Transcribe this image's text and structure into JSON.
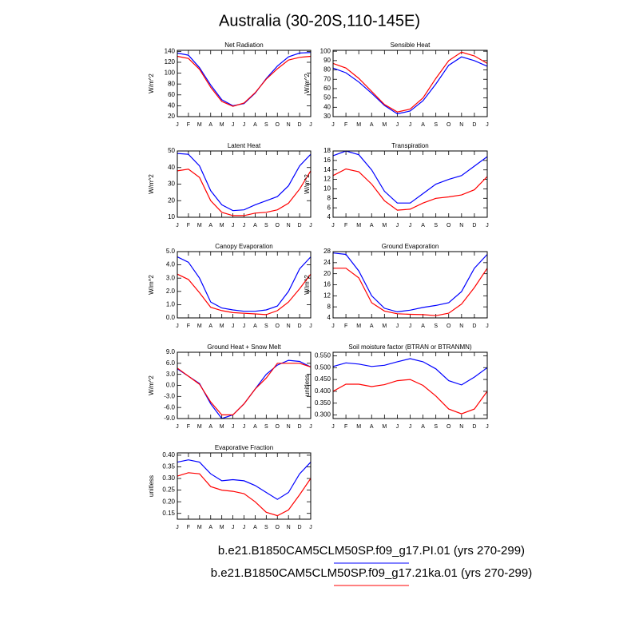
{
  "title": "Australia (30-20S,110-145E)",
  "chart_data": [
    {
      "type": "line",
      "title": "Net Radiation",
      "ylabel": "W/m^2",
      "categories": [
        "J",
        "F",
        "M",
        "A",
        "M",
        "J",
        "J",
        "A",
        "S",
        "O",
        "N",
        "D",
        "J"
      ],
      "ylim": [
        20,
        142
      ],
      "yticks": [
        20,
        40,
        60,
        80,
        100,
        120,
        140
      ],
      "series": [
        {
          "name": "b.e21.B1850CAM5CLM50SP.f09_g17.PI.01 (yrs 270-299)",
          "color": "#0000ff",
          "values": [
            137,
            133,
            110,
            78,
            51,
            40,
            44,
            63,
            90,
            113,
            130,
            137,
            138
          ]
        },
        {
          "name": "b.e21.B1850CAM5CLM50SP.f09_g17.21ka.01 (yrs 270-299)",
          "color": "#ff0000",
          "values": [
            131,
            127,
            107,
            74,
            48,
            39,
            45,
            64,
            89,
            108,
            124,
            129,
            131
          ]
        }
      ]
    },
    {
      "type": "line",
      "title": "Sensible Heat",
      "ylabel": "W/m^2",
      "categories": [
        "J",
        "F",
        "M",
        "A",
        "M",
        "J",
        "J",
        "A",
        "S",
        "O",
        "N",
        "D",
        "J"
      ],
      "ylim": [
        30,
        101
      ],
      "yticks": [
        30,
        40,
        50,
        60,
        70,
        80,
        90,
        100
      ],
      "series": [
        {
          "color": "#0000ff",
          "values": [
            82,
            77,
            67,
            55,
            42,
            33,
            36,
            47,
            65,
            85,
            94,
            90,
            84
          ]
        },
        {
          "color": "#ff0000",
          "values": [
            87,
            82,
            71,
            57,
            43,
            35,
            38,
            50,
            71,
            90,
            99,
            95,
            87
          ]
        }
      ]
    },
    {
      "type": "line",
      "title": "Latent Heat",
      "ylabel": "W/m^2",
      "categories": [
        "J",
        "F",
        "M",
        "A",
        "M",
        "J",
        "J",
        "A",
        "S",
        "O",
        "N",
        "D",
        "J"
      ],
      "ylim": [
        10,
        50
      ],
      "yticks": [
        10,
        20,
        30,
        40,
        50
      ],
      "series": [
        {
          "color": "#0000ff",
          "values": [
            48.5,
            48,
            41,
            26,
            17.5,
            14,
            14.5,
            17.5,
            20,
            22.5,
            29,
            41,
            48
          ]
        },
        {
          "color": "#ff0000",
          "values": [
            38,
            39,
            34,
            20,
            13,
            11,
            11,
            12.5,
            13,
            14.5,
            18.5,
            27,
            38
          ]
        }
      ]
    },
    {
      "type": "line",
      "title": "Transpiration",
      "ylabel": "W/m^2",
      "categories": [
        "J",
        "F",
        "M",
        "A",
        "M",
        "J",
        "J",
        "A",
        "S",
        "O",
        "N",
        "D",
        "J"
      ],
      "ylim": [
        4,
        18
      ],
      "yticks": [
        4,
        6,
        8,
        10,
        12,
        14,
        16,
        18
      ],
      "series": [
        {
          "color": "#0000ff",
          "values": [
            17,
            18,
            17.2,
            14,
            9.5,
            7,
            7,
            9,
            11,
            12,
            12.8,
            14.8,
            16.8
          ]
        },
        {
          "color": "#ff0000",
          "values": [
            12.8,
            14.2,
            13.6,
            11,
            7.5,
            5.5,
            5.7,
            7,
            8,
            8.3,
            8.7,
            9.8,
            12.6
          ]
        }
      ]
    },
    {
      "type": "line",
      "title": "Canopy Evaporation",
      "ylabel": "W/m^2",
      "categories": [
        "J",
        "F",
        "M",
        "A",
        "M",
        "J",
        "J",
        "A",
        "S",
        "O",
        "N",
        "D",
        "J"
      ],
      "ylim": [
        0,
        5
      ],
      "yticks": [
        {
          "value": 0,
          "label": "0.0"
        },
        {
          "value": 1,
          "label": "1.0"
        },
        {
          "value": 2,
          "label": "2.0"
        },
        {
          "value": 3,
          "label": "3.0"
        },
        {
          "value": 4,
          "label": "4.0"
        },
        {
          "value": 5,
          "label": "5.0"
        }
      ],
      "series": [
        {
          "color": "#0000ff",
          "values": [
            4.6,
            4.2,
            3.0,
            1.2,
            0.75,
            0.6,
            0.5,
            0.5,
            0.6,
            0.9,
            2.0,
            3.7,
            4.6
          ]
        },
        {
          "color": "#ff0000",
          "values": [
            3.3,
            2.9,
            1.9,
            0.8,
            0.55,
            0.4,
            0.35,
            0.3,
            0.25,
            0.55,
            1.2,
            2.2,
            3.3
          ]
        }
      ]
    },
    {
      "type": "line",
      "title": "Ground Evaporation",
      "ylabel": "W/m^2",
      "categories": [
        "J",
        "F",
        "M",
        "A",
        "M",
        "J",
        "J",
        "A",
        "S",
        "O",
        "N",
        "D",
        "J"
      ],
      "ylim": [
        4,
        28
      ],
      "yticks": [
        4,
        8,
        12,
        16,
        20,
        24,
        28
      ],
      "series": [
        {
          "color": "#0000ff",
          "values": [
            27.5,
            27,
            21,
            12,
            7.5,
            6.2,
            6.8,
            7.8,
            8.5,
            9.5,
            13.5,
            22,
            27
          ]
        },
        {
          "color": "#ff0000",
          "values": [
            22,
            22,
            18.5,
            9.5,
            6.5,
            5.5,
            5.3,
            5.2,
            4.8,
            5.7,
            9,
            15,
            22
          ]
        }
      ]
    },
    {
      "type": "line",
      "title": "Ground Heat + Snow Melt",
      "ylabel": "W/m^2",
      "categories": [
        "J",
        "F",
        "M",
        "A",
        "M",
        "J",
        "J",
        "A",
        "S",
        "O",
        "N",
        "D",
        "J"
      ],
      "ylim": [
        -9,
        9
      ],
      "yticks": [
        {
          "value": -9,
          "label": "-9.0"
        },
        {
          "value": -6,
          "label": "-6.0"
        },
        {
          "value": -3,
          "label": "-3.0"
        },
        {
          "value": 0,
          "label": "0.0"
        },
        {
          "value": 3,
          "label": "3.0"
        },
        {
          "value": 6,
          "label": "6.0"
        },
        {
          "value": 9,
          "label": "9.0"
        }
      ],
      "series": [
        {
          "color": "#0000ff",
          "values": [
            4.5,
            2.5,
            0.5,
            -5,
            -9,
            -8,
            -5,
            -1,
            3,
            5.5,
            6.8,
            6.5,
            5
          ]
        },
        {
          "color": "#ff0000",
          "values": [
            4.7,
            2.5,
            0.3,
            -4.5,
            -8,
            -8,
            -5,
            -1,
            2,
            6,
            6,
            6,
            5
          ]
        }
      ]
    },
    {
      "type": "line",
      "title": "Soil moisture factor (BTRAN or BTRANMN)",
      "ylabel": "unitless",
      "categories": [
        "J",
        "F",
        "M",
        "A",
        "M",
        "J",
        "J",
        "A",
        "S",
        "O",
        "N",
        "D",
        "J"
      ],
      "ylim": [
        0.285,
        0.565
      ],
      "yticks": [
        {
          "value": 0.3,
          "label": "0.300"
        },
        {
          "value": 0.35,
          "label": "0.350"
        },
        {
          "value": 0.4,
          "label": "0.400"
        },
        {
          "value": 0.45,
          "label": "0.450"
        },
        {
          "value": 0.5,
          "label": "0.500"
        },
        {
          "value": 0.55,
          "label": "0.550"
        }
      ],
      "series": [
        {
          "color": "#0000ff",
          "values": [
            0.505,
            0.52,
            0.515,
            0.505,
            0.51,
            0.525,
            0.538,
            0.525,
            0.495,
            0.445,
            0.427,
            0.46,
            0.5
          ]
        },
        {
          "color": "#ff0000",
          "values": [
            0.4,
            0.43,
            0.43,
            0.42,
            0.428,
            0.445,
            0.45,
            0.425,
            0.38,
            0.325,
            0.305,
            0.325,
            0.4
          ]
        }
      ]
    },
    {
      "type": "line",
      "title": "Evaporative Fraction",
      "ylabel": "unitless",
      "categories": [
        "J",
        "F",
        "M",
        "A",
        "M",
        "J",
        "J",
        "A",
        "S",
        "O",
        "N",
        "D",
        "J"
      ],
      "ylim": [
        0.125,
        0.41
      ],
      "yticks": [
        {
          "value": 0.15,
          "label": "0.15"
        },
        {
          "value": 0.2,
          "label": "0.20"
        },
        {
          "value": 0.25,
          "label": "0.25"
        },
        {
          "value": 0.3,
          "label": "0.30"
        },
        {
          "value": 0.35,
          "label": "0.35"
        },
        {
          "value": 0.4,
          "label": "0.40"
        }
      ],
      "series": [
        {
          "color": "#0000ff",
          "values": [
            0.37,
            0.38,
            0.37,
            0.32,
            0.29,
            0.295,
            0.29,
            0.27,
            0.24,
            0.21,
            0.24,
            0.32,
            0.37
          ]
        },
        {
          "color": "#ff0000",
          "values": [
            0.31,
            0.325,
            0.32,
            0.265,
            0.25,
            0.245,
            0.235,
            0.2,
            0.155,
            0.14,
            0.165,
            0.23,
            0.3
          ]
        }
      ]
    }
  ]
}
